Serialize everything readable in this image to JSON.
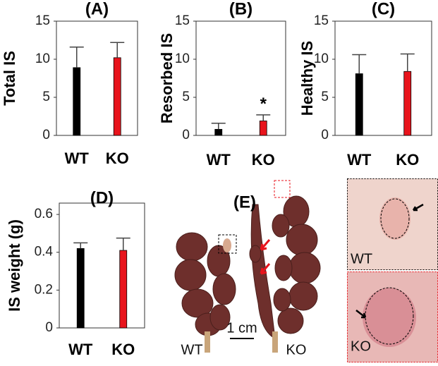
{
  "chart_data": [
    {
      "type": "bar",
      "title": "(A)",
      "ylabel": "Total IS",
      "categories": [
        "WT",
        "KO"
      ],
      "values": [
        8.9,
        10.2
      ],
      "errors": [
        2.7,
        2.0
      ],
      "colors": [
        "#000000",
        "#e8141c"
      ],
      "ylim": [
        0,
        15
      ],
      "yticks": [
        0,
        5,
        10,
        15
      ]
    },
    {
      "type": "bar",
      "title": "(B)",
      "ylabel": "Resorbed IS",
      "categories": [
        "WT",
        "KO"
      ],
      "values": [
        0.8,
        1.9
      ],
      "errors": [
        0.8,
        0.8
      ],
      "colors": [
        "#000000",
        "#e8141c"
      ],
      "ylim": [
        0,
        15
      ],
      "yticks": [
        0,
        5,
        10,
        15
      ],
      "annotation": {
        "text": "*",
        "index": 1
      }
    },
    {
      "type": "bar",
      "title": "(C)",
      "ylabel": "Healthy IS",
      "categories": [
        "WT",
        "KO"
      ],
      "values": [
        8.1,
        8.4
      ],
      "errors": [
        2.5,
        2.3
      ],
      "colors": [
        "#000000",
        "#e8141c"
      ],
      "ylim": [
        0,
        15
      ],
      "yticks": [
        0,
        5,
        10,
        15
      ]
    },
    {
      "type": "bar",
      "title": "(D)",
      "ylabel": "IS weight (g)",
      "categories": [
        "WT",
        "KO"
      ],
      "values": [
        0.42,
        0.41
      ],
      "errors": [
        0.03,
        0.065
      ],
      "colors": [
        "#000000",
        "#e8141c"
      ],
      "ylim": [
        0,
        0.66
      ],
      "yticks": [
        0,
        0.2,
        0.4,
        0.6
      ]
    }
  ],
  "photo": {
    "title": "(E)",
    "scale": "1 cm",
    "left_label": "WT",
    "right_label": "KO",
    "inset_top_label": "WT",
    "inset_bottom_label": "KO"
  }
}
